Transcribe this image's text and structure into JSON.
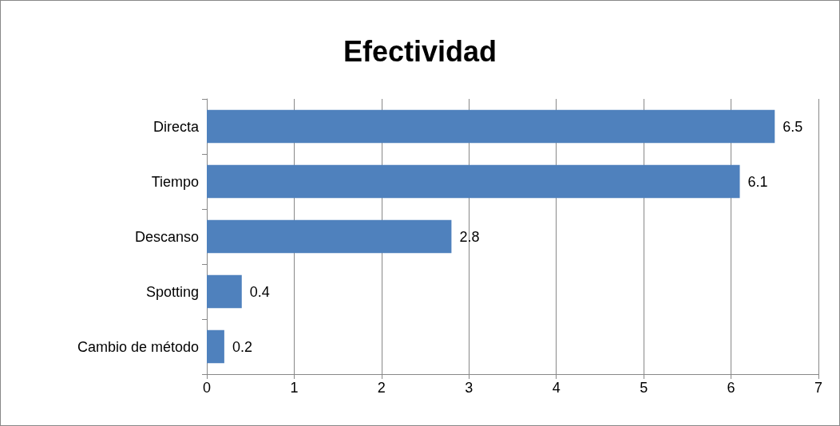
{
  "chart_data": {
    "type": "bar",
    "title": "Efectividad",
    "orientation": "horizontal",
    "categories": [
      "Directa",
      "Tiempo",
      "Descanso",
      "Spotting",
      "Cambio de método"
    ],
    "values": [
      6.5,
      6.1,
      2.8,
      0.4,
      0.2
    ],
    "color": "#4f81bd",
    "xlim": [
      0,
      7
    ],
    "xticks": [
      0,
      1,
      2,
      3,
      4,
      5,
      6,
      7
    ],
    "grid": "x",
    "data_labels": true
  }
}
